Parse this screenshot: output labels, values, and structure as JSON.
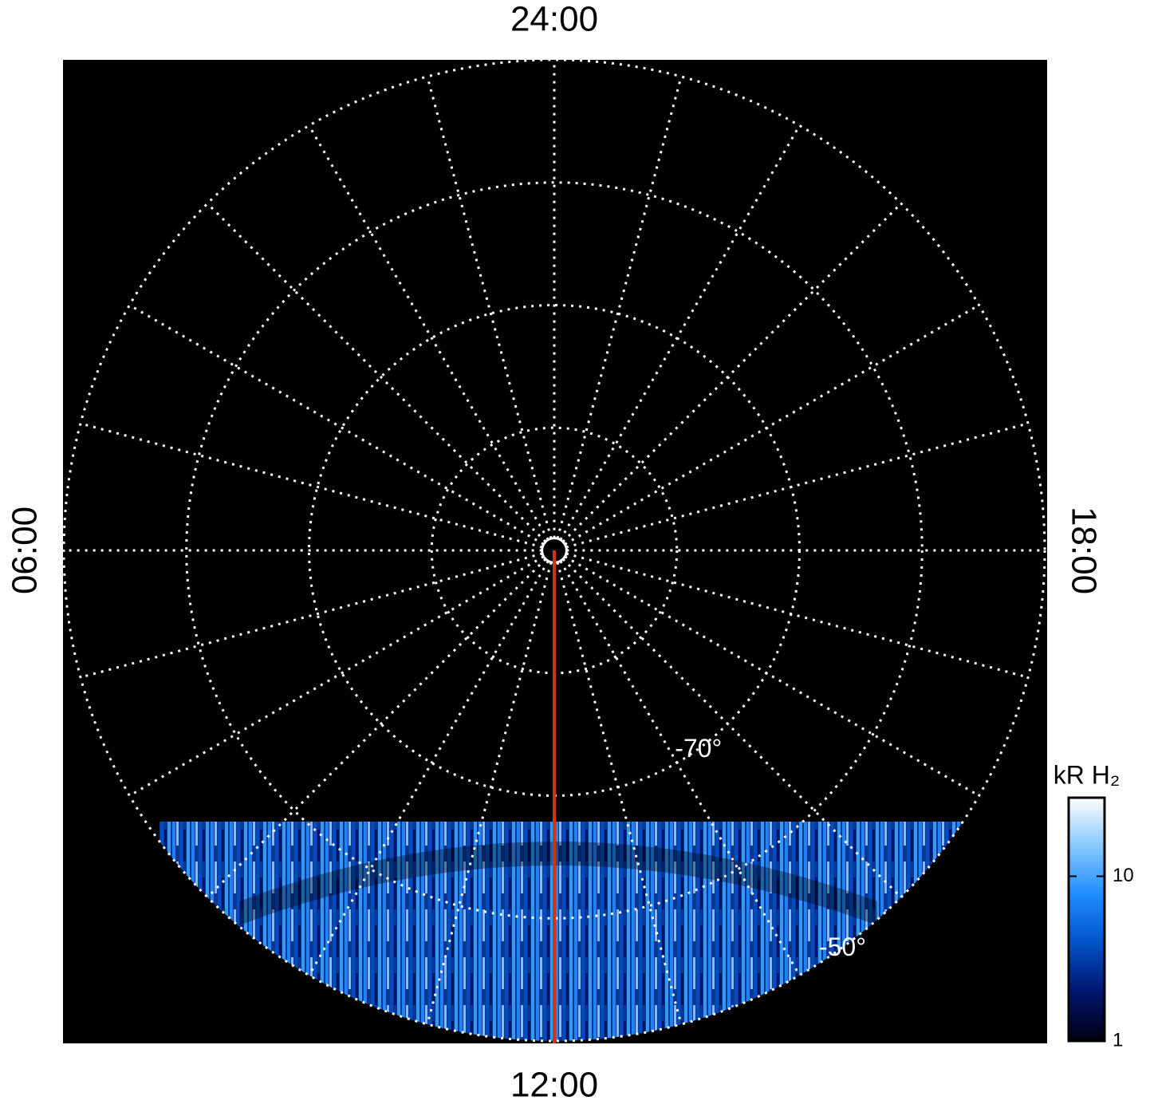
{
  "chart_data": {
    "type": "polar",
    "hour_labels": [
      {
        "value": 24,
        "label": "24:00"
      },
      {
        "value": 6,
        "label": "06:00"
      },
      {
        "value": 12,
        "label": "12:00"
      },
      {
        "value": 18,
        "label": "18:00"
      }
    ],
    "meridian_hours": [
      0,
      1,
      2,
      3,
      4,
      5,
      6,
      7,
      8,
      9,
      10,
      11,
      12,
      13,
      14,
      15,
      16,
      17,
      18,
      19,
      20,
      21,
      22,
      23
    ],
    "rlim": [
      -90,
      -50
    ],
    "latitude_circles": [
      -89,
      -80,
      -70,
      -60,
      -50
    ],
    "latitude_labels": [
      {
        "value": -70,
        "label": "-70°"
      },
      {
        "value": -50,
        "label": "-50°"
      }
    ],
    "highlight_meridian": {
      "value": 12,
      "color": "#d4330f"
    },
    "grid_color": "#ffffff",
    "background": "#000000",
    "colorbar": {
      "label": "kR H₂",
      "scale": "log",
      "lim": [
        1,
        30
      ],
      "ticks": [
        1,
        10
      ],
      "colors": [
        "#000010",
        "#00156e",
        "#0052c8",
        "#1e8cff",
        "#86c8ff",
        "#ffffff"
      ]
    }
  }
}
